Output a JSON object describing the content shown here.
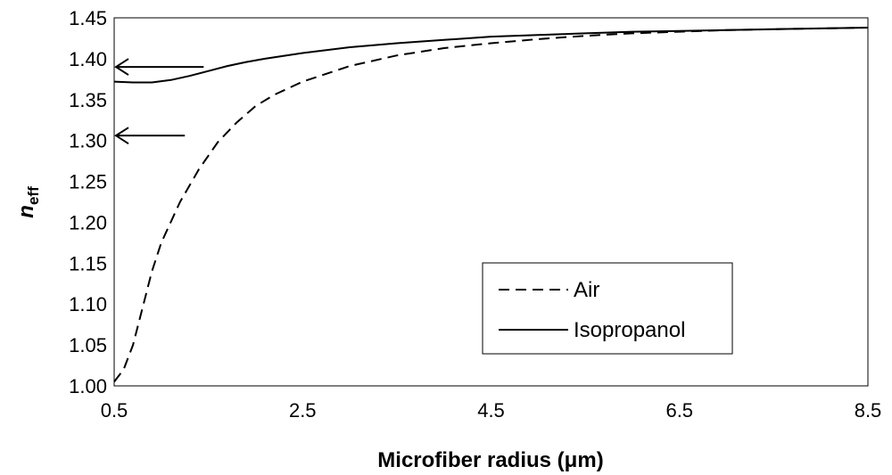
{
  "chart_data": {
    "type": "line",
    "title": "",
    "xlabel": "Microfiber radius (μm)",
    "ylabel": "n",
    "ylabel_subscript": "eff",
    "xlim": [
      0.5,
      8.5
    ],
    "ylim": [
      1.0,
      1.45
    ],
    "x_ticks": [
      "0.5",
      "2.5",
      "4.5",
      "6.5",
      "8.5"
    ],
    "y_ticks": [
      "1.00",
      "1.05",
      "1.10",
      "1.15",
      "1.20",
      "1.25",
      "1.30",
      "1.35",
      "1.40",
      "1.45"
    ],
    "grid": false,
    "legend_position": "lower-right",
    "series": [
      {
        "name": "Air",
        "line_style": "dashed",
        "color": "#000000",
        "x": [
          0.5,
          0.6,
          0.7,
          0.8,
          0.9,
          1.0,
          1.2,
          1.4,
          1.6,
          1.8,
          2.0,
          2.2,
          2.5,
          3.0,
          3.5,
          4.0,
          4.5,
          5.0,
          5.5,
          6.0,
          6.5,
          7.0,
          7.5,
          8.0,
          8.5
        ],
        "y": [
          1.005,
          1.02,
          1.05,
          1.095,
          1.14,
          1.175,
          1.225,
          1.265,
          1.298,
          1.322,
          1.342,
          1.356,
          1.372,
          1.391,
          1.404,
          1.413,
          1.419,
          1.424,
          1.428,
          1.431,
          1.433,
          1.435,
          1.436,
          1.437,
          1.438
        ]
      },
      {
        "name": "Isopropanol",
        "line_style": "solid",
        "color": "#000000",
        "x": [
          0.5,
          0.7,
          0.9,
          1.1,
          1.3,
          1.5,
          1.7,
          1.9,
          2.1,
          2.5,
          3.0,
          3.5,
          4.0,
          4.5,
          5.0,
          5.5,
          6.0,
          6.5,
          7.0,
          7.5,
          8.0,
          8.5
        ],
        "y": [
          1.372,
          1.371,
          1.371,
          1.374,
          1.379,
          1.385,
          1.391,
          1.396,
          1.4,
          1.407,
          1.414,
          1.419,
          1.423,
          1.427,
          1.429,
          1.431,
          1.433,
          1.434,
          1.435,
          1.436,
          1.437,
          1.438
        ]
      }
    ],
    "annotations": [
      {
        "type": "arrow",
        "direction": "left",
        "from": [
          1.45,
          1.39
        ],
        "to": [
          0.5,
          1.39
        ]
      },
      {
        "type": "arrow",
        "direction": "left",
        "from": [
          1.25,
          1.306
        ],
        "to": [
          0.5,
          1.306
        ]
      }
    ]
  }
}
